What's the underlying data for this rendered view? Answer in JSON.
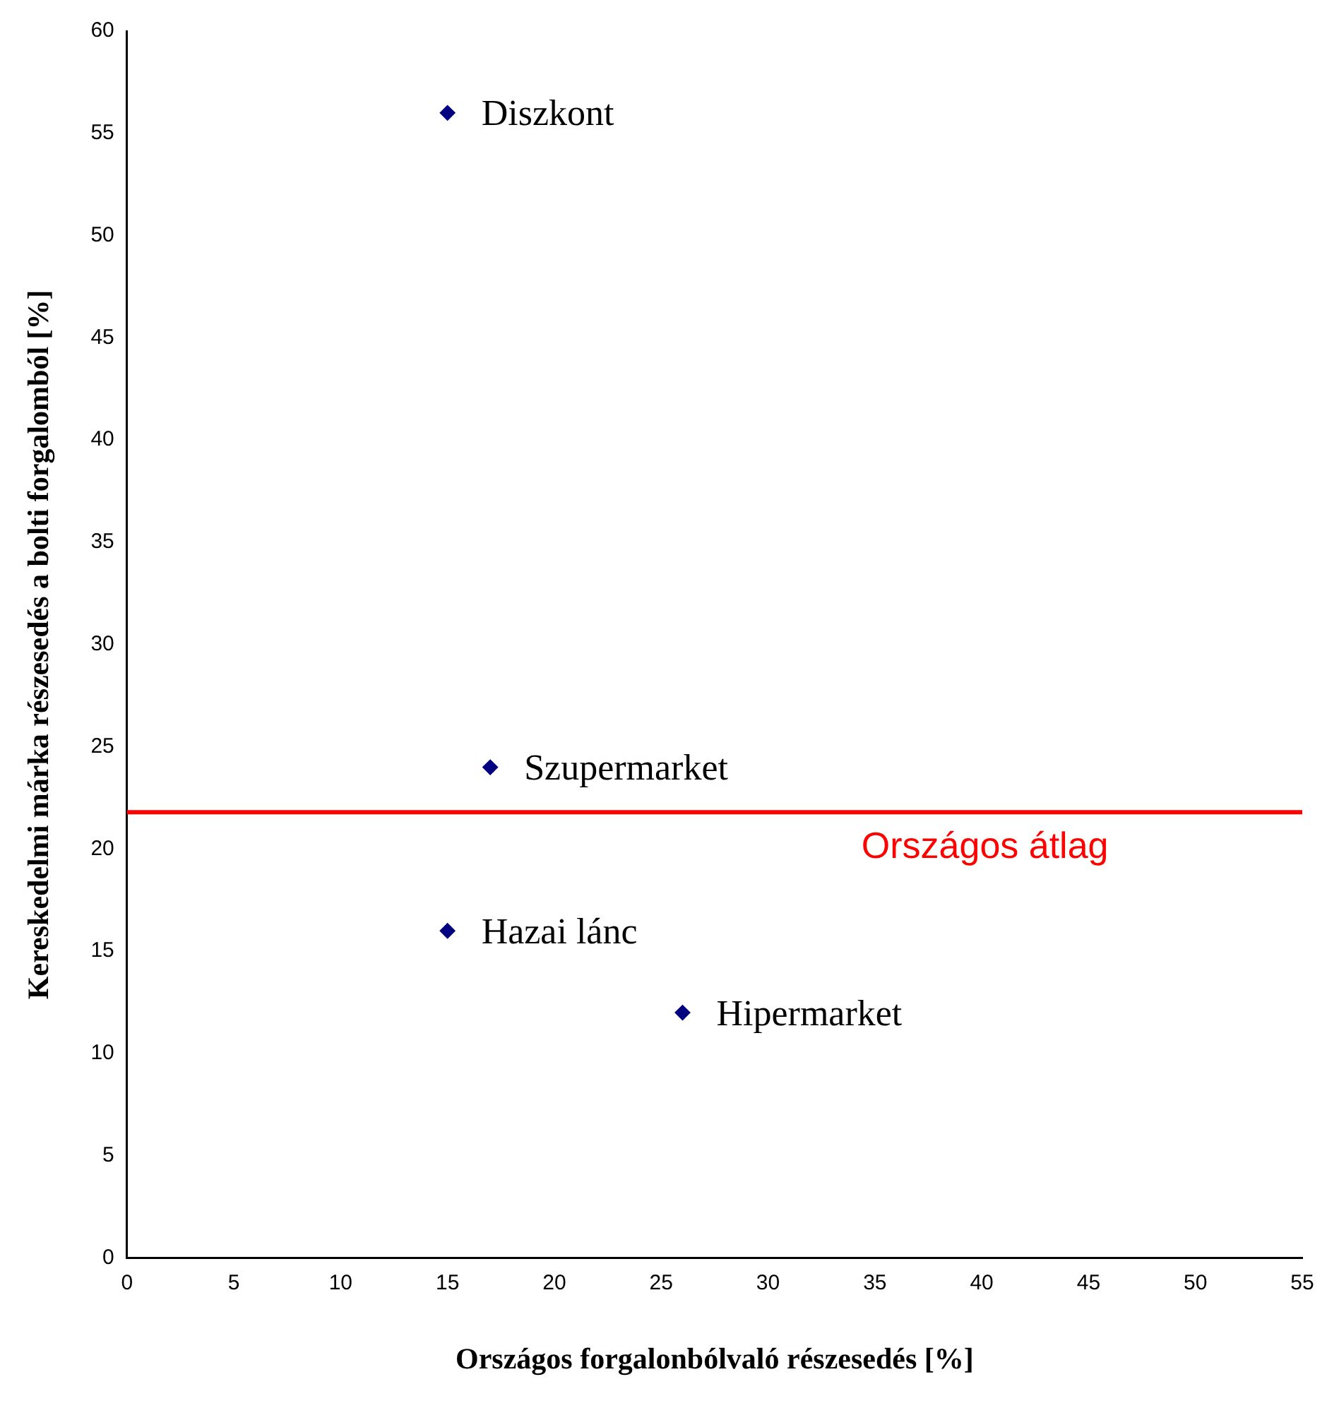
{
  "chart_data": {
    "type": "scatter",
    "xlabel": "Országos forgalonbólvaló részesedés [%]",
    "ylabel": "Kereskedelmi márka részesedés a bolti forgalomból [%]",
    "x": [
      15,
      17,
      15,
      26
    ],
    "values": [
      56,
      24,
      16,
      12
    ],
    "color": "#000080",
    "marker": "diamond",
    "xlim": [
      0,
      55
    ],
    "xticks": [
      0,
      5,
      10,
      15,
      20,
      25,
      30,
      35,
      40,
      45,
      50,
      55
    ],
    "ylim": [
      0,
      60
    ],
    "yticks": [
      0,
      5,
      10,
      15,
      20,
      25,
      30,
      35,
      40,
      45,
      50,
      55,
      60
    ],
    "grid": false,
    "legend": false,
    "ref_lines": [
      {
        "axis": "y",
        "value": 21.8,
        "label": "Országos átlag",
        "color": "#ff0000"
      }
    ],
    "annotations": [
      {
        "text": "Diszkont",
        "x": 15,
        "y": 56
      },
      {
        "text": "Szupermarket",
        "x": 17,
        "y": 24
      },
      {
        "text": "Hazai lánc",
        "x": 15,
        "y": 16
      },
      {
        "text": "Hipermarket",
        "x": 26,
        "y": 12
      }
    ]
  }
}
